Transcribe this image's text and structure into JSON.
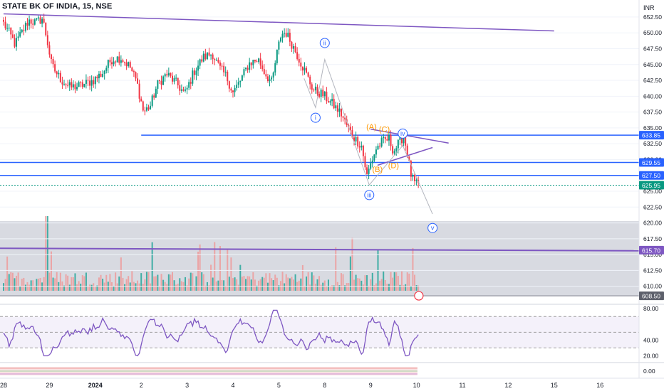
{
  "header": {
    "symbol_title": "STATE BK OF INDIA, 15, NSE"
  },
  "price_axis": {
    "currency": "INR",
    "ticks": [
      "652.50",
      "650.00",
      "647.50",
      "645.00",
      "642.50",
      "640.00",
      "637.50",
      "635.00",
      "632.50",
      "630.00",
      "627.50",
      "625.00",
      "622.50",
      "620.00",
      "617.50",
      "615.00",
      "612.50",
      "610.00"
    ]
  },
  "time_axis": {
    "ticks": [
      {
        "label": "28",
        "x": 0
      },
      {
        "label": "29",
        "x": 1
      },
      {
        "label": "2024",
        "x": 2
      },
      {
        "label": "2",
        "x": 3
      },
      {
        "label": "3",
        "x": 4
      },
      {
        "label": "4",
        "x": 5
      },
      {
        "label": "5",
        "x": 6
      },
      {
        "label": "8",
        "x": 7
      },
      {
        "label": "9",
        "x": 8
      },
      {
        "label": "10",
        "x": 9
      },
      {
        "label": "11",
        "x": 10
      },
      {
        "label": "12",
        "x": 11
      },
      {
        "label": "15",
        "x": 12
      },
      {
        "label": "16",
        "x": 13
      }
    ]
  },
  "price_badges": [
    {
      "value": "633.85",
      "price": 633.85,
      "color": "#2962ff"
    },
    {
      "value": "629.55",
      "price": 629.55,
      "color": "#2962ff"
    },
    {
      "value": "627.50",
      "price": 627.5,
      "color": "#2962ff"
    },
    {
      "value": "625.95",
      "price": 625.95,
      "color": "#089981"
    },
    {
      "value": "615.70",
      "price": 615.7,
      "color": "#7e57c2"
    },
    {
      "value": "608.50",
      "price": 608.5,
      "color": "#5d606b"
    }
  ],
  "wave_labels": {
    "blue": [
      {
        "text": "i",
        "x": 6.8,
        "price": 636.6
      },
      {
        "text": "ii",
        "x": 7.0,
        "price": 648.4
      },
      {
        "text": "iii",
        "x": 7.97,
        "price": 624.4
      },
      {
        "text": "iv",
        "x": 8.7,
        "price": 634.1
      },
      {
        "text": "v",
        "x": 9.35,
        "price": 619.2
      }
    ],
    "orange": [
      {
        "text": "(A)",
        "x": 8.02,
        "price": 635.2
      },
      {
        "text": "(B)",
        "x": 8.15,
        "price": 628.5
      },
      {
        "text": "(C)",
        "x": 8.3,
        "price": 634.8
      },
      {
        "text": "(D)",
        "x": 8.5,
        "price": 629.1
      }
    ]
  },
  "rsi_axis": {
    "ticks": [
      "80.00",
      "40.00",
      "20.00"
    ]
  },
  "indicator_axis": {
    "ticks": [
      "0.00"
    ]
  },
  "chart_data": {
    "type": "candlestick",
    "title": "STATE BK OF INDIA, 15, NSE",
    "currency": "INR",
    "price_range": [
      607.5,
      653.5
    ],
    "x_axis_note": "x in trading-day units, 0 = 28 Dec",
    "horizontal_levels": [
      633.85,
      629.55,
      627.5,
      615.7
    ],
    "last_price": 625.95,
    "volume_area_low_price": 608.5,
    "trendlines": [
      {
        "x1": 0,
        "y1": 653.0,
        "x2": 12.0,
        "y2": 650.3
      },
      {
        "x1": -1,
        "y1": 615.9,
        "x2": 14.5,
        "y2": 615.4
      },
      {
        "x1": 3.0,
        "y1": 633.85,
        "x2": 14.5,
        "y2": 633.85
      }
    ],
    "triangle": [
      {
        "x1": 8.0,
        "y1": 634.8,
        "x2": 9.7,
        "y2": 632.6
      },
      {
        "x1": 8.15,
        "y1": 629.1,
        "x2": 9.35,
        "y2": 631.9
      }
    ],
    "projection_path": [
      {
        "x": 6.55,
        "price": 642.8
      },
      {
        "x": 6.8,
        "price": 638.2
      },
      {
        "x": 7.0,
        "price": 645.8
      },
      {
        "x": 7.97,
        "price": 626.0
      },
      {
        "x": 8.7,
        "price": 632.2
      },
      {
        "x": 9.35,
        "price": 621.4
      }
    ],
    "rsi_range": [
      15,
      82
    ],
    "rsi_levels": [
      70,
      50,
      30
    ],
    "series": [
      {
        "name": "price_anchors",
        "points": [
          [
            0,
            651.5
          ],
          [
            0.1,
            650.3
          ],
          [
            0.25,
            648.2
          ],
          [
            0.4,
            650.1
          ],
          [
            0.55,
            652.0
          ],
          [
            0.7,
            651.6
          ],
          [
            0.85,
            652.3
          ],
          [
            0.95,
            648.8
          ],
          [
            1.05,
            644.8
          ],
          [
            1.25,
            642.6
          ],
          [
            1.45,
            641.4
          ],
          [
            1.7,
            641.7
          ],
          [
            1.95,
            642.5
          ],
          [
            2.15,
            643.6
          ],
          [
            2.35,
            645.8
          ],
          [
            2.55,
            646.1
          ],
          [
            2.75,
            644.7
          ],
          [
            2.9,
            642.3
          ],
          [
            3.05,
            637.5
          ],
          [
            3.2,
            638.5
          ],
          [
            3.35,
            641.8
          ],
          [
            3.55,
            643.5
          ],
          [
            3.75,
            642.2
          ],
          [
            3.95,
            640.3
          ],
          [
            4.15,
            643.9
          ],
          [
            4.35,
            646.1
          ],
          [
            4.55,
            646.8
          ],
          [
            4.7,
            644.5
          ],
          [
            4.85,
            643.2
          ],
          [
            5.0,
            640.6
          ],
          [
            5.15,
            642.3
          ],
          [
            5.35,
            645.2
          ],
          [
            5.55,
            645.8
          ],
          [
            5.7,
            643.6
          ],
          [
            5.85,
            642.1
          ],
          [
            5.95,
            646.5
          ],
          [
            6.05,
            649.8
          ],
          [
            6.15,
            650.1
          ],
          [
            6.35,
            647.3
          ],
          [
            6.55,
            644.2
          ],
          [
            6.75,
            641.0
          ],
          [
            6.95,
            640.3
          ],
          [
            7.15,
            638.9
          ],
          [
            7.35,
            637.3
          ],
          [
            7.5,
            635.1
          ],
          [
            7.62,
            633.6
          ],
          [
            7.8,
            632.2
          ],
          [
            7.92,
            627.4
          ],
          [
            8.0,
            629.3
          ],
          [
            8.12,
            631.7
          ],
          [
            8.25,
            632.8
          ],
          [
            8.4,
            633.3
          ],
          [
            8.5,
            631.3
          ],
          [
            8.6,
            632.4
          ],
          [
            8.72,
            633.8
          ],
          [
            8.8,
            631.0
          ],
          [
            8.87,
            627.8
          ],
          [
            8.95,
            626.3
          ],
          [
            9.02,
            625.9
          ]
        ]
      }
    ]
  }
}
